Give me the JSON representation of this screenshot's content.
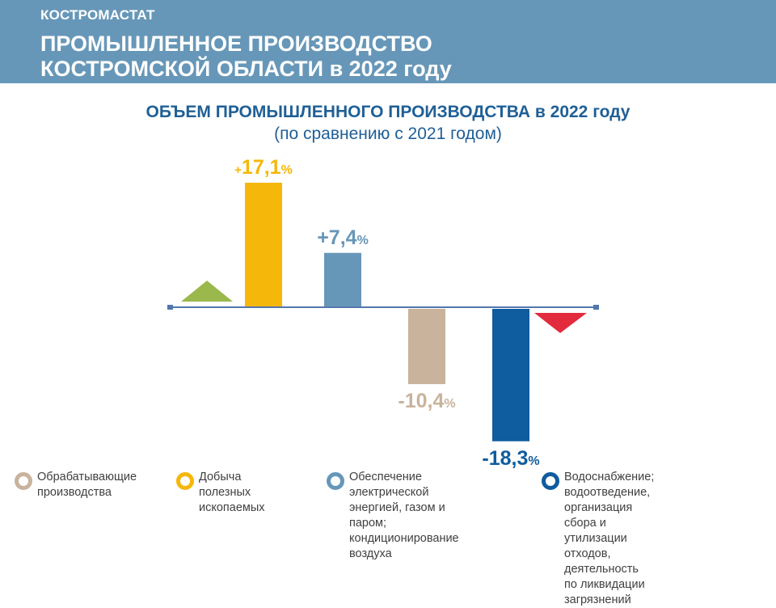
{
  "header": {
    "org": "КОСТРОМАСТАТ",
    "title_line1": "ПРОМЫШЛЕННОЕ ПРОИЗВОДСТВО",
    "title_line2": "КОСТРОМСКОЙ ОБЛАСТИ в 2022 году"
  },
  "colors": {
    "header_bg": "#6797b8",
    "title": "#1f5f96",
    "axis": "#5277ad",
    "up_marker": "#9ab84c",
    "down_marker": "#e22c3e"
  },
  "chart_data": {
    "type": "bar",
    "title": "ОБЪЕМ ПРОМЫШЛЕННОГО ПРОИЗВОДСТВА в 2022 году",
    "subtitle": "(по сравнению с 2021 годом)",
    "categories": [
      "Добыча полезных ископаемых",
      "Обеспечение электрической энергией, газом и паром; кондиционирование воздуха",
      "Обрабатывающие производства",
      "Водоснабжение; водоотведение, организация сбора и утилизации отходов, деятельность по ликвидации загрязнений"
    ],
    "values": [
      17.1,
      7.4,
      -10.4,
      -18.3
    ],
    "colors": [
      "#f5b70a",
      "#6797b8",
      "#c9b39c",
      "#0f5c9e"
    ],
    "labels": [
      {
        "sign": "+",
        "number": "17,1",
        "unit": "%",
        "color": "#f5b70a"
      },
      {
        "sign": "",
        "number": "+7,4",
        "unit": "%",
        "color": "#6797b8"
      },
      {
        "sign": "",
        "number": "-10,4",
        "unit": "%",
        "color": "#c9b39c"
      },
      {
        "sign": "",
        "number": "-18,3",
        "unit": "%",
        "color": "#0f5c9e"
      }
    ],
    "ylim": [
      -20,
      20
    ],
    "legend": [
      {
        "label": "Обрабатывающие\nпроизводства",
        "color": "#c9b39c"
      },
      {
        "label": "Добыча полезных\nископаемых",
        "color": "#f5b70a"
      },
      {
        "label": "Обеспечение электрической\nэнергией, газом и паром;\nкондиционирование воздуха",
        "color": "#6797b8"
      },
      {
        "label": "Водоснабжение; водоотведение,\nорганизация сбора и утилизации\nотходов, деятельность\nпо ликвидации загрязнений",
        "color": "#0f5c9e"
      }
    ],
    "legend_position": "bottom"
  }
}
